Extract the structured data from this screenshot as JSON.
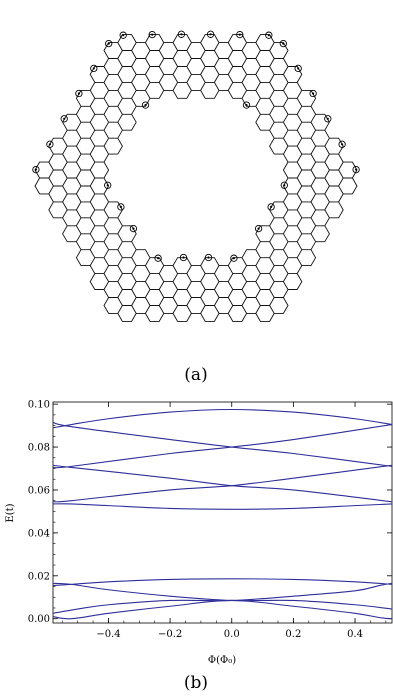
{
  "figure": {
    "panel_a": {
      "caption": "(a)",
      "lattice": "honeycomb",
      "outer_shape": "hexagon",
      "inner_hole": "hexagon",
      "edge_markers": "circled dots"
    },
    "panel_b": {
      "caption": "(b)"
    }
  },
  "chart_data": {
    "type": "line",
    "title": "",
    "xlabel": "Φ(Φ₀)",
    "ylabel": "E(t)",
    "xlim": [
      -0.58,
      0.52
    ],
    "ylim": [
      -0.002,
      0.101
    ],
    "x_ticks": [
      -0.4,
      -0.2,
      0.0,
      0.2,
      0.4
    ],
    "x_tick_labels": [
      "−0.4",
      "−0.2",
      "0.0",
      "0.2",
      "0.4"
    ],
    "y_ticks": [
      0.0,
      0.02,
      0.04,
      0.06,
      0.08,
      0.1
    ],
    "y_tick_labels": [
      "0.00",
      "0.02",
      "0.04",
      "0.06",
      "0.08",
      "0.10"
    ],
    "grid": false,
    "line_color": "#2e2e9a",
    "series": [
      {
        "x": [
          -0.58,
          -0.52,
          -0.4,
          -0.2,
          0.0,
          0.2,
          0.4,
          0.48,
          0.52
        ],
        "y": [
          0.001,
          0.0,
          0.0025,
          0.0058,
          0.0085,
          0.0058,
          0.0025,
          0.0005,
          0.0
        ],
        "values": [
          0.001,
          0.0,
          0.0025,
          0.0058,
          0.0085,
          0.0058,
          0.0025,
          0.0005,
          0.0
        ]
      },
      {
        "x": [
          -0.58,
          -0.5,
          -0.4,
          -0.2,
          0.0,
          0.2,
          0.4,
          0.48,
          0.52
        ],
        "y": [
          0.0025,
          0.0045,
          0.0065,
          0.0085,
          0.0085,
          0.0105,
          0.013,
          0.0155,
          0.0165
        ],
        "values": [
          0.0025,
          0.0045,
          0.0065,
          0.0085,
          0.0085,
          0.0105,
          0.013,
          0.0155,
          0.0165
        ]
      },
      {
        "x": [
          -0.58,
          -0.52,
          -0.4,
          -0.2,
          0.0,
          0.2,
          0.4,
          0.52
        ],
        "y": [
          0.0165,
          0.016,
          0.0135,
          0.0105,
          0.0085,
          0.0085,
          0.0065,
          0.0045
        ],
        "values": [
          0.0165,
          0.016,
          0.0135,
          0.0105,
          0.0085,
          0.0085,
          0.0065,
          0.0045
        ]
      },
      {
        "x": [
          -0.58,
          -0.52,
          -0.4,
          -0.2,
          0.0,
          0.2,
          0.4,
          0.52
        ],
        "y": [
          0.0155,
          0.016,
          0.0172,
          0.0183,
          0.0186,
          0.0183,
          0.0172,
          0.016
        ],
        "values": [
          0.0155,
          0.016,
          0.0172,
          0.0183,
          0.0186,
          0.0183,
          0.0172,
          0.016
        ]
      },
      {
        "x": [
          -0.58,
          -0.52,
          -0.4,
          -0.2,
          0.0,
          0.2,
          0.4,
          0.52
        ],
        "y": [
          0.0535,
          0.0535,
          0.0527,
          0.0514,
          0.051,
          0.0514,
          0.0527,
          0.0535
        ],
        "values": [
          0.0535,
          0.0535,
          0.0527,
          0.0514,
          0.051,
          0.0514,
          0.0527,
          0.0535
        ]
      },
      {
        "x": [
          -0.58,
          -0.52,
          -0.2,
          0.0,
          0.2,
          0.52
        ],
        "y": [
          0.0545,
          0.055,
          0.06,
          0.062,
          0.0655,
          0.0715
        ],
        "values": [
          0.0545,
          0.055,
          0.06,
          0.062,
          0.0655,
          0.0715
        ]
      },
      {
        "x": [
          -0.58,
          -0.52,
          -0.2,
          0.0,
          0.2,
          0.52
        ],
        "y": [
          0.0715,
          0.0705,
          0.0655,
          0.062,
          0.06,
          0.0545
        ],
        "values": [
          0.0715,
          0.0705,
          0.0655,
          0.062,
          0.06,
          0.0545
        ]
      },
      {
        "x": [
          -0.58,
          -0.52,
          -0.2,
          0.0,
          0.2,
          0.52
        ],
        "y": [
          0.0705,
          0.071,
          0.077,
          0.08,
          0.0835,
          0.0905
        ],
        "values": [
          0.0705,
          0.071,
          0.077,
          0.08,
          0.0835,
          0.0905
        ]
      },
      {
        "x": [
          -0.58,
          -0.52,
          -0.2,
          0.0,
          0.2,
          0.52
        ],
        "y": [
          0.0915,
          0.0895,
          0.0835,
          0.08,
          0.077,
          0.071
        ],
        "values": [
          0.0915,
          0.0895,
          0.0835,
          0.08,
          0.077,
          0.071
        ]
      },
      {
        "x": [
          -0.58,
          -0.52,
          -0.4,
          -0.2,
          0.0,
          0.2,
          0.4,
          0.52
        ],
        "y": [
          0.089,
          0.0905,
          0.0932,
          0.0963,
          0.0975,
          0.0963,
          0.0932,
          0.0905
        ],
        "values": [
          0.089,
          0.0905,
          0.0932,
          0.0963,
          0.0975,
          0.0963,
          0.0932,
          0.0905
        ]
      }
    ]
  }
}
